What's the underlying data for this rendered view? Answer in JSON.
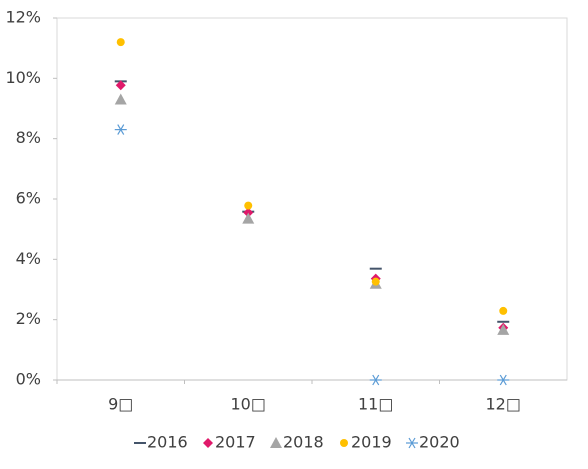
{
  "chart_data": {
    "type": "scatter",
    "categories": [
      "9□",
      "10□",
      "11□",
      "12□"
    ],
    "ylim": [
      0,
      12
    ],
    "yticks": [
      {
        "value": 0,
        "label": "0%"
      },
      {
        "value": 2,
        "label": "2%"
      },
      {
        "value": 4,
        "label": "4%"
      },
      {
        "value": 6,
        "label": "6%"
      },
      {
        "value": 8,
        "label": "8%"
      },
      {
        "value": 10,
        "label": "10%"
      },
      {
        "value": 12,
        "label": "12%"
      }
    ],
    "legend": "bottom",
    "series": [
      {
        "name": "2016",
        "color": "#44546a",
        "marker": "dash",
        "values": [
          9.9,
          5.58,
          3.69,
          1.93
        ]
      },
      {
        "name": "2017",
        "color": "#e0196a",
        "marker": "diamond",
        "values": [
          9.77,
          5.55,
          3.36,
          1.73
        ]
      },
      {
        "name": "2018",
        "color": "#a5a5a5",
        "marker": "triangle",
        "values": [
          9.3,
          5.35,
          3.19,
          1.66
        ]
      },
      {
        "name": "2019",
        "color": "#ffc000",
        "marker": "circle",
        "values": [
          11.2,
          5.78,
          3.26,
          2.29
        ]
      },
      {
        "name": "2020",
        "color": "#5b9bd5",
        "marker": "asterisk",
        "values": [
          8.3,
          null,
          0,
          0
        ]
      }
    ]
  }
}
